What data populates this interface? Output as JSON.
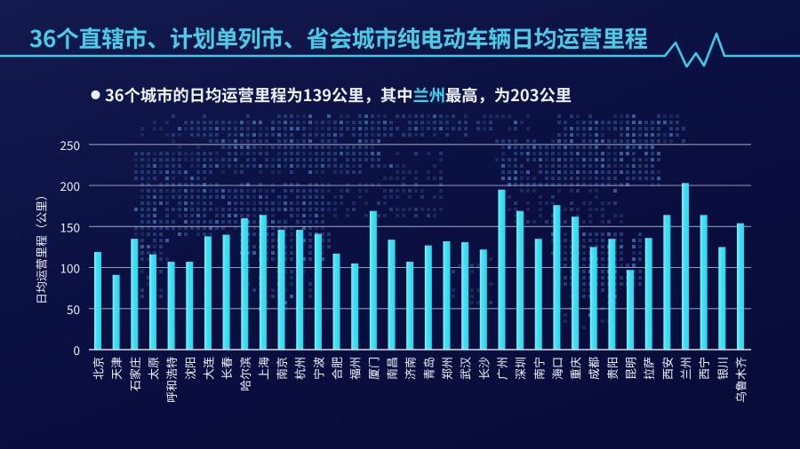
{
  "page": {
    "title": "36个直辖市、计划单列市、省会城市纯电动车辆日均运营里程",
    "subtitle": {
      "bullet": "●",
      "text_before": "36个城市的日均运营里程为139公里，其中",
      "highlight": "兰州",
      "text_after": "最高，为203公里"
    }
  },
  "colors": {
    "background_top": "#131a4e",
    "background_bottom": "#070b37",
    "accent_cyan": "#3fc8e8",
    "bar_cyan": "#2fd9f0",
    "highlight_cyan": "#3fd2e9",
    "grid_line": "#c3c8df",
    "text_white": "#eff1f8"
  },
  "chart_data": {
    "type": "bar",
    "title": "36个直辖市、计划单列市、省会城市纯电动车辆日均运营里程",
    "categories": [
      "北京",
      "天津",
      "石家庄",
      "太原",
      "呼和浩特",
      "沈阳",
      "大连",
      "长春",
      "哈尔滨",
      "上海",
      "南京",
      "杭州",
      "宁波",
      "合肥",
      "福州",
      "厦门",
      "南昌",
      "济南",
      "青岛",
      "郑州",
      "武汉",
      "长沙",
      "广州",
      "深圳",
      "南宁",
      "海口",
      "重庆",
      "成都",
      "贵阳",
      "昆明",
      "拉萨",
      "西安",
      "兰州",
      "西宁",
      "银川",
      "乌鲁木齐"
    ],
    "values": [
      119,
      91,
      135,
      116,
      107,
      107,
      138,
      140,
      160,
      164,
      146,
      146,
      141,
      117,
      105,
      169,
      134,
      107,
      127,
      132,
      131,
      122,
      195,
      169,
      135,
      176,
      162,
      125,
      135,
      97,
      136,
      164,
      203,
      164,
      125,
      154
    ],
    "xlabel": "",
    "ylabel": "日均运营里程（公里）",
    "yticks": [
      0,
      50,
      100,
      150,
      200,
      250
    ],
    "ylim": [
      0,
      250
    ],
    "grid": true,
    "legend": false,
    "mean_note": "36个城市的日均运营里程为139公里，其中兰州最高，为203公里"
  }
}
